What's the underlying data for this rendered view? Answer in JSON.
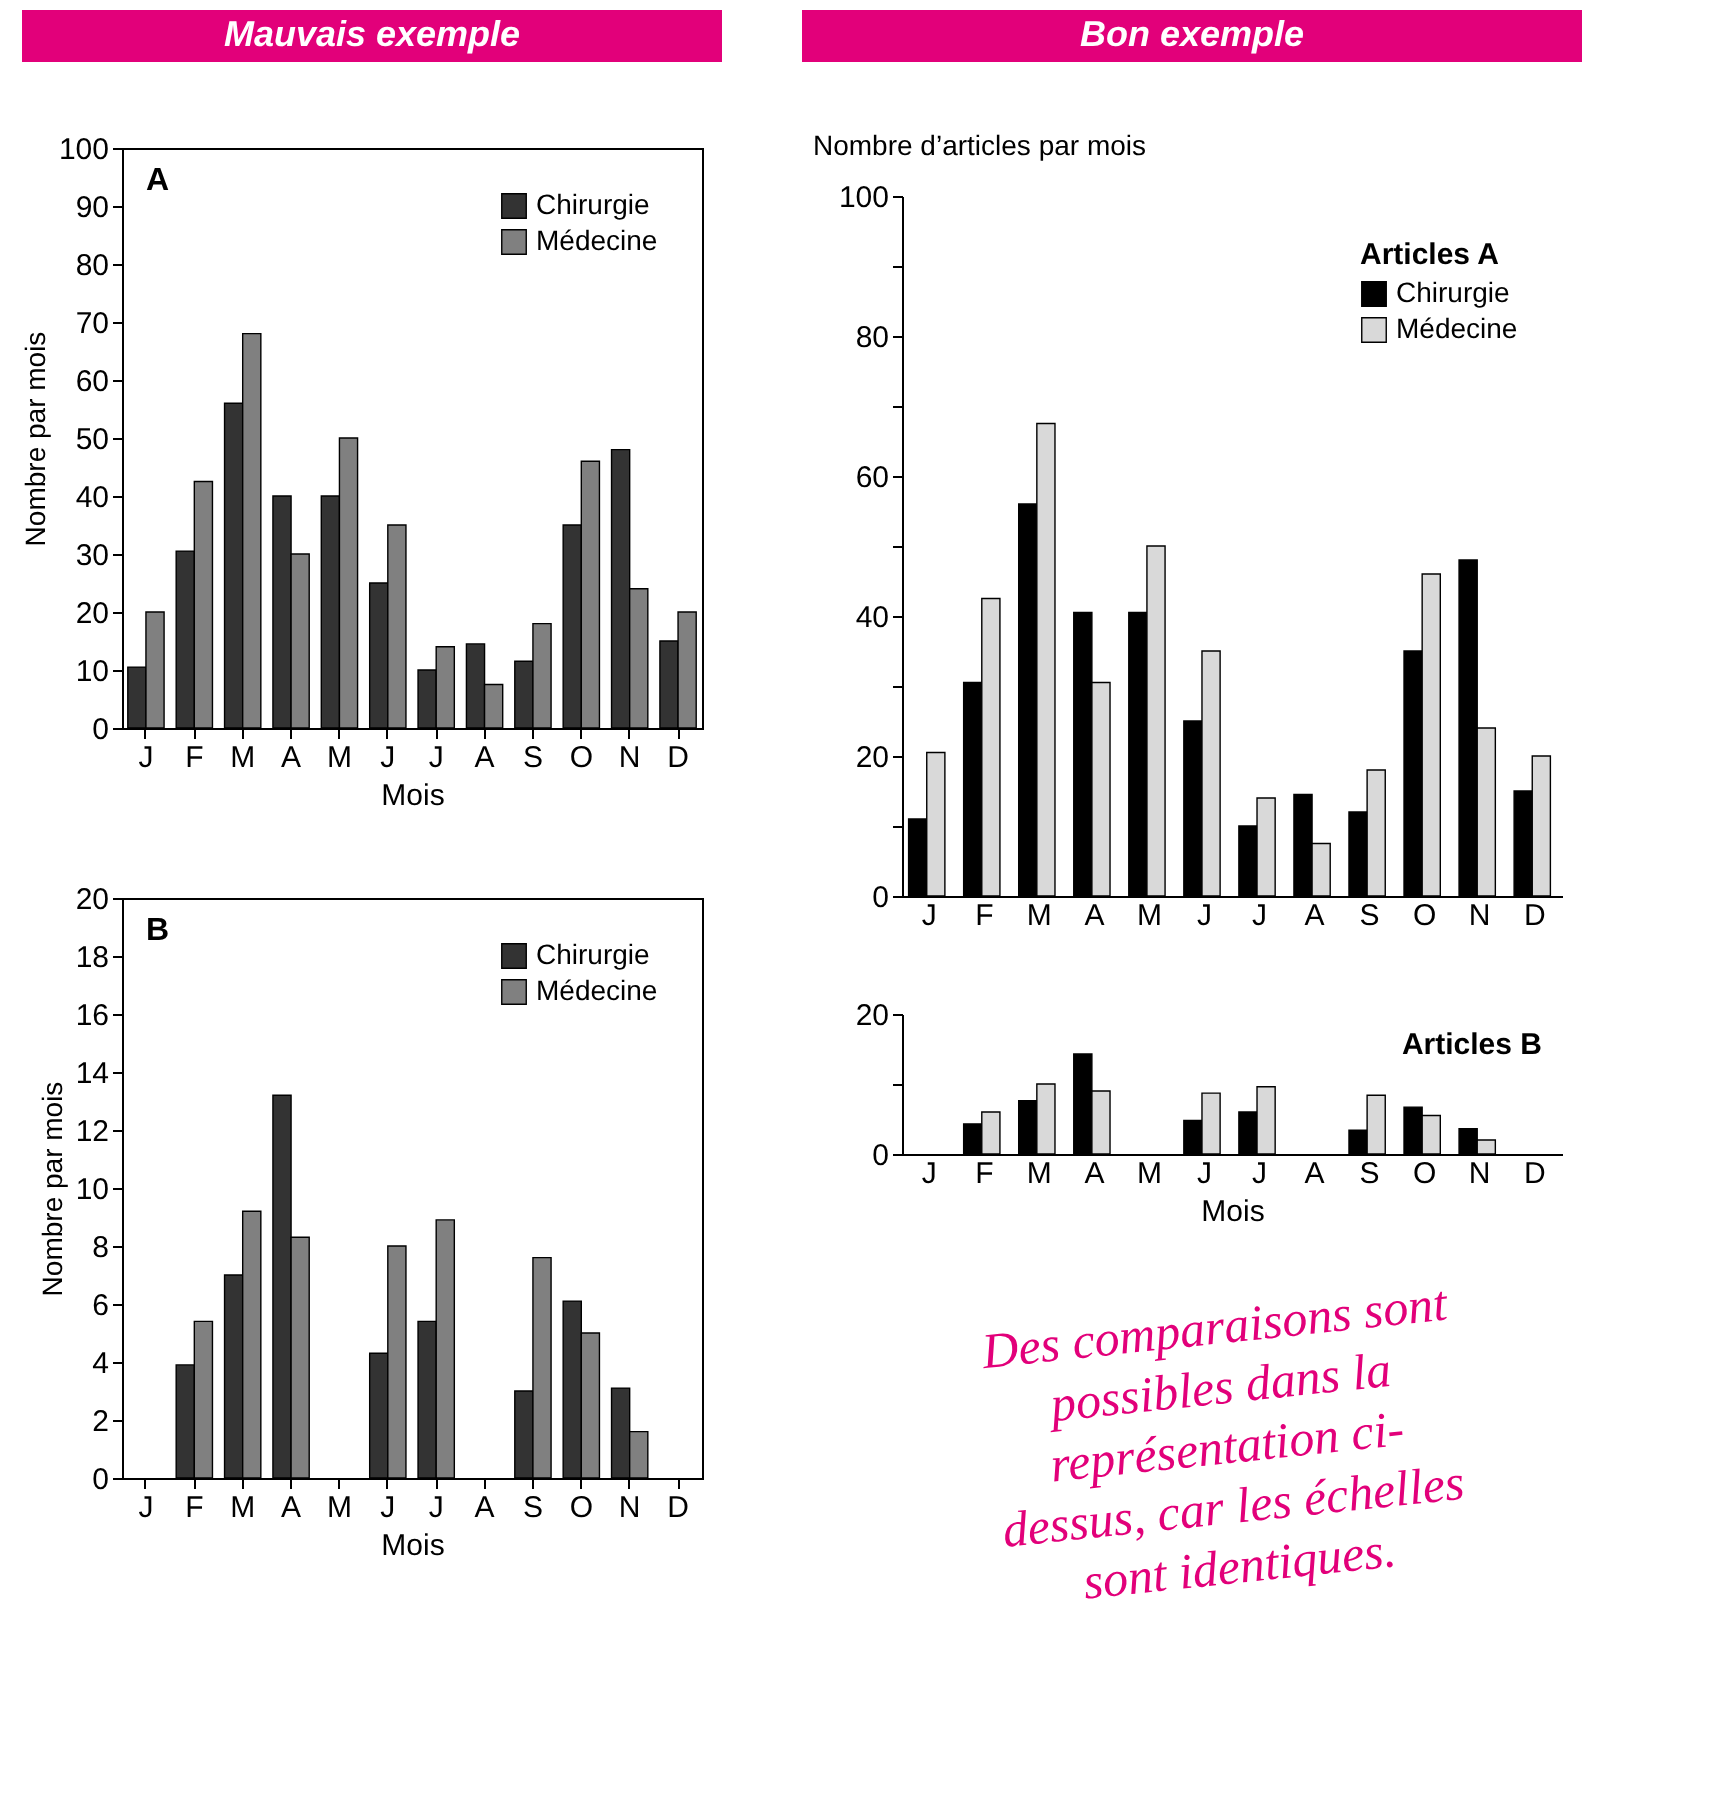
{
  "chart_data": [
    {
      "type": "bar",
      "title": "Mauvais exemple",
      "xlabel": "Mois",
      "ylabel": "Nombre par mois",
      "annotations": [
        "A"
      ],
      "categories": [
        "J",
        "F",
        "M",
        "A",
        "M",
        "J",
        "J",
        "A",
        "S",
        "O",
        "N",
        "D"
      ],
      "series": [
        {
          "name": "Chirurgie",
          "color": "#333333",
          "values": [
            10.5,
            30.5,
            56,
            40,
            40,
            25,
            10,
            14.5,
            11.5,
            35,
            48,
            15
          ]
        },
        {
          "name": "Médecine",
          "color": "#808080",
          "values": [
            20,
            42.5,
            68,
            30,
            50,
            35,
            14,
            7.5,
            18,
            46,
            24,
            20
          ]
        }
      ],
      "ylim": [
        0,
        100
      ],
      "yticks": [
        0,
        10,
        20,
        30,
        40,
        50,
        60,
        70,
        80,
        90,
        100
      ],
      "grid": false,
      "legend": "top right"
    },
    {
      "type": "bar",
      "xlabel": "Mois",
      "ylabel": "Nombre par mois",
      "annotations": [
        "B"
      ],
      "categories": [
        "J",
        "F",
        "M",
        "A",
        "M",
        "J",
        "J",
        "A",
        "S",
        "O",
        "N",
        "D"
      ],
      "series": [
        {
          "name": "Chirurgie",
          "color": "#333333",
          "values": [
            null,
            3.9,
            7,
            13.2,
            null,
            4.3,
            5.4,
            null,
            3,
            6.1,
            3.1,
            null
          ]
        },
        {
          "name": "Médecine",
          "color": "#808080",
          "values": [
            null,
            5.4,
            9.2,
            8.3,
            null,
            8,
            8.9,
            null,
            7.6,
            5,
            1.6,
            null
          ]
        }
      ],
      "ylim": [
        0,
        20
      ],
      "yticks": [
        0,
        2,
        4,
        6,
        8,
        10,
        12,
        14,
        16,
        18,
        20
      ],
      "grid": false,
      "legend": "top right"
    },
    {
      "type": "bar",
      "title": "Bon exemple",
      "ylabel": "Nombre d’articles par mois",
      "legend_title": "Articles A",
      "categories": [
        "J",
        "F",
        "M",
        "A",
        "M",
        "J",
        "J",
        "A",
        "S",
        "O",
        "N",
        "D"
      ],
      "series": [
        {
          "name": "Chirurgie",
          "color": "#000000",
          "values": [
            11,
            30.5,
            56,
            40.5,
            40.5,
            25,
            10,
            14.5,
            12,
            35,
            48,
            15
          ]
        },
        {
          "name": "Médecine",
          "color": "#d9d9d9",
          "values": [
            20.5,
            42.5,
            67.5,
            30.5,
            50,
            35,
            14,
            7.5,
            18,
            46,
            24,
            20
          ]
        }
      ],
      "ylim": [
        0,
        100
      ],
      "yticks": [
        0,
        {
          "value": 10,
          "label": null
        },
        20,
        {
          "value": 30,
          "label": null
        },
        40,
        {
          "value": 50,
          "label": null
        },
        60,
        {
          "value": 70,
          "label": null
        },
        80,
        {
          "value": 90,
          "label": null
        },
        100
      ],
      "grid": false,
      "legend": "top right"
    },
    {
      "type": "bar",
      "xlabel": "Mois",
      "annotations": [
        "Articles B",
        "Des comparaisons sont possibles dans la représentation ci-dessus, car les échelles sont identiques."
      ],
      "categories": [
        "J",
        "F",
        "M",
        "A",
        "M",
        "J",
        "J",
        "A",
        "S",
        "O",
        "N",
        "D"
      ],
      "series": [
        {
          "color": "#000000",
          "values": [
            null,
            4.3,
            7.6,
            14.3,
            null,
            4.8,
            6,
            null,
            3.4,
            6.7,
            3.6,
            null
          ]
        },
        {
          "color": "#d9d9d9",
          "values": [
            null,
            6,
            10,
            9,
            null,
            8.7,
            9.6,
            null,
            8.4,
            5.5,
            2,
            null
          ]
        }
      ],
      "ylim": [
        0,
        20
      ],
      "yticks": [
        0,
        {
          "value": 10,
          "label": null
        },
        20
      ],
      "grid": false
    }
  ]
}
